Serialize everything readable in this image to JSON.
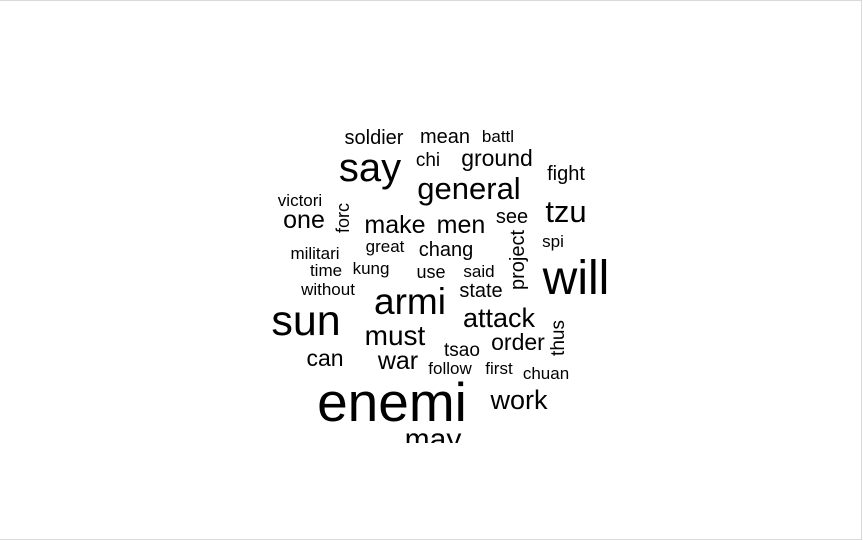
{
  "chart_data": {
    "type": "wordcloud",
    "title": "",
    "text_color": "#000000",
    "background": "#ffffff",
    "words": [
      {
        "text": "enemi",
        "weight": 100
      },
      {
        "text": "will",
        "weight": 88
      },
      {
        "text": "sun",
        "weight": 78
      },
      {
        "text": "say",
        "weight": 73
      },
      {
        "text": "armi",
        "weight": 68
      },
      {
        "text": "general",
        "weight": 56
      },
      {
        "text": "tzu",
        "weight": 56
      },
      {
        "text": "may",
        "weight": 54
      },
      {
        "text": "must",
        "weight": 52
      },
      {
        "text": "attack",
        "weight": 50
      },
      {
        "text": "work",
        "weight": 50
      },
      {
        "text": "one",
        "weight": 46
      },
      {
        "text": "make",
        "weight": 46
      },
      {
        "text": "men",
        "weight": 46
      },
      {
        "text": "war",
        "weight": 45
      },
      {
        "text": "ground",
        "weight": 41
      },
      {
        "text": "can",
        "weight": 41
      },
      {
        "text": "order",
        "weight": 41
      },
      {
        "text": "soldier",
        "weight": 37
      },
      {
        "text": "mean",
        "weight": 37
      },
      {
        "text": "chang",
        "weight": 36
      },
      {
        "text": "project",
        "weight": 36
      },
      {
        "text": "see",
        "weight": 36
      },
      {
        "text": "fight",
        "weight": 36
      },
      {
        "text": "state",
        "weight": 36
      },
      {
        "text": "chi",
        "weight": 35
      },
      {
        "text": "tsao",
        "weight": 35
      },
      {
        "text": "thus",
        "weight": 35
      },
      {
        "text": "forc",
        "weight": 33
      },
      {
        "text": "use",
        "weight": 33
      },
      {
        "text": "battl",
        "weight": 32
      },
      {
        "text": "victori",
        "weight": 31
      },
      {
        "text": "spi",
        "weight": 31
      },
      {
        "text": "time",
        "weight": 30
      },
      {
        "text": "kung",
        "weight": 30
      },
      {
        "text": "said",
        "weight": 30
      },
      {
        "text": "militari",
        "weight": 30
      },
      {
        "text": "without",
        "weight": 30
      },
      {
        "text": "great",
        "weight": 30
      },
      {
        "text": "follow",
        "weight": 30
      },
      {
        "text": "first",
        "weight": 30
      },
      {
        "text": "chuan",
        "weight": 30
      }
    ]
  }
}
